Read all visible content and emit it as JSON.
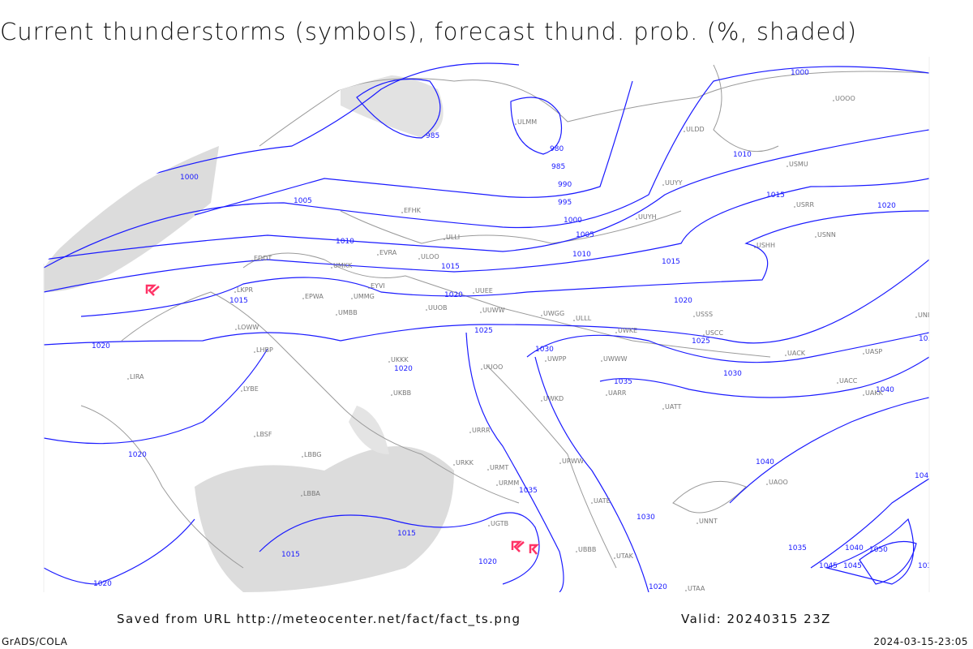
{
  "title": "Current thunderstorms (symbols), forecast thund. prob. (%, shaded)",
  "footer": {
    "saved_from": "Saved from URL http://meteocenter.net/fact/fact_ts.png",
    "valid": "Valid: 20240315 23Z",
    "software": "GrADS/COLA",
    "timestamp": "2024-03-15-23:05"
  },
  "colors": {
    "isobar": "#1a1aff",
    "borders": "#999999",
    "thunderstorm_symbol": "#ff3366",
    "probability_shading": "#d8d8d8"
  },
  "map": {
    "thunderstorm_symbol_icon": "thunderstorm-icon",
    "isobar_labels": [
      "1000",
      "985",
      "980",
      "985",
      "990",
      "995",
      "1000",
      "1005",
      "1010",
      "1015",
      "1020",
      "1025",
      "1030",
      "1035",
      "1040",
      "1045",
      "1000",
      "1005",
      "1010",
      "1015",
      "1020",
      "1015",
      "1020",
      "1020",
      "1015",
      "1015",
      "1020",
      "1020",
      "1020",
      "1025",
      "1030",
      "1035",
      "1010",
      "1015",
      "1020",
      "1030",
      "1040",
      "1035",
      "1040",
      "1045",
      "1050",
      "1030",
      "1020",
      "1035",
      "1045"
    ],
    "stations": [
      "EFHK",
      "ULLI",
      "ULOO",
      "EVRA",
      "EDDT",
      "EPWA",
      "UMKK",
      "UMMG",
      "EYVI",
      "UMBB",
      "UKKK",
      "UKBB",
      "LKPR",
      "LOWW",
      "LHBP",
      "LIRA",
      "LYBE",
      "LBSF",
      "LBBG",
      "LBBA",
      "UUEE",
      "UUWW",
      "UUOO",
      "URRR",
      "URWW",
      "URKK",
      "URMT",
      "URMM",
      "UGTB",
      "UBBB",
      "UTAK",
      "UTAA",
      "UATT",
      "UARR",
      "UWWW",
      "UWKD",
      "UWGG",
      "UWPP",
      "USSS",
      "USCC",
      "USRR",
      "USNN",
      "USMU",
      "ULDD",
      "ULMM",
      "UUYY",
      "UUYH",
      "USHH",
      "UACC",
      "UAKK",
      "UNBB",
      "UATE",
      "UWKE",
      "UUOB",
      "ULLL",
      "UACK",
      "UASP",
      "UAOO",
      "UNNT",
      "UOOO"
    ]
  }
}
